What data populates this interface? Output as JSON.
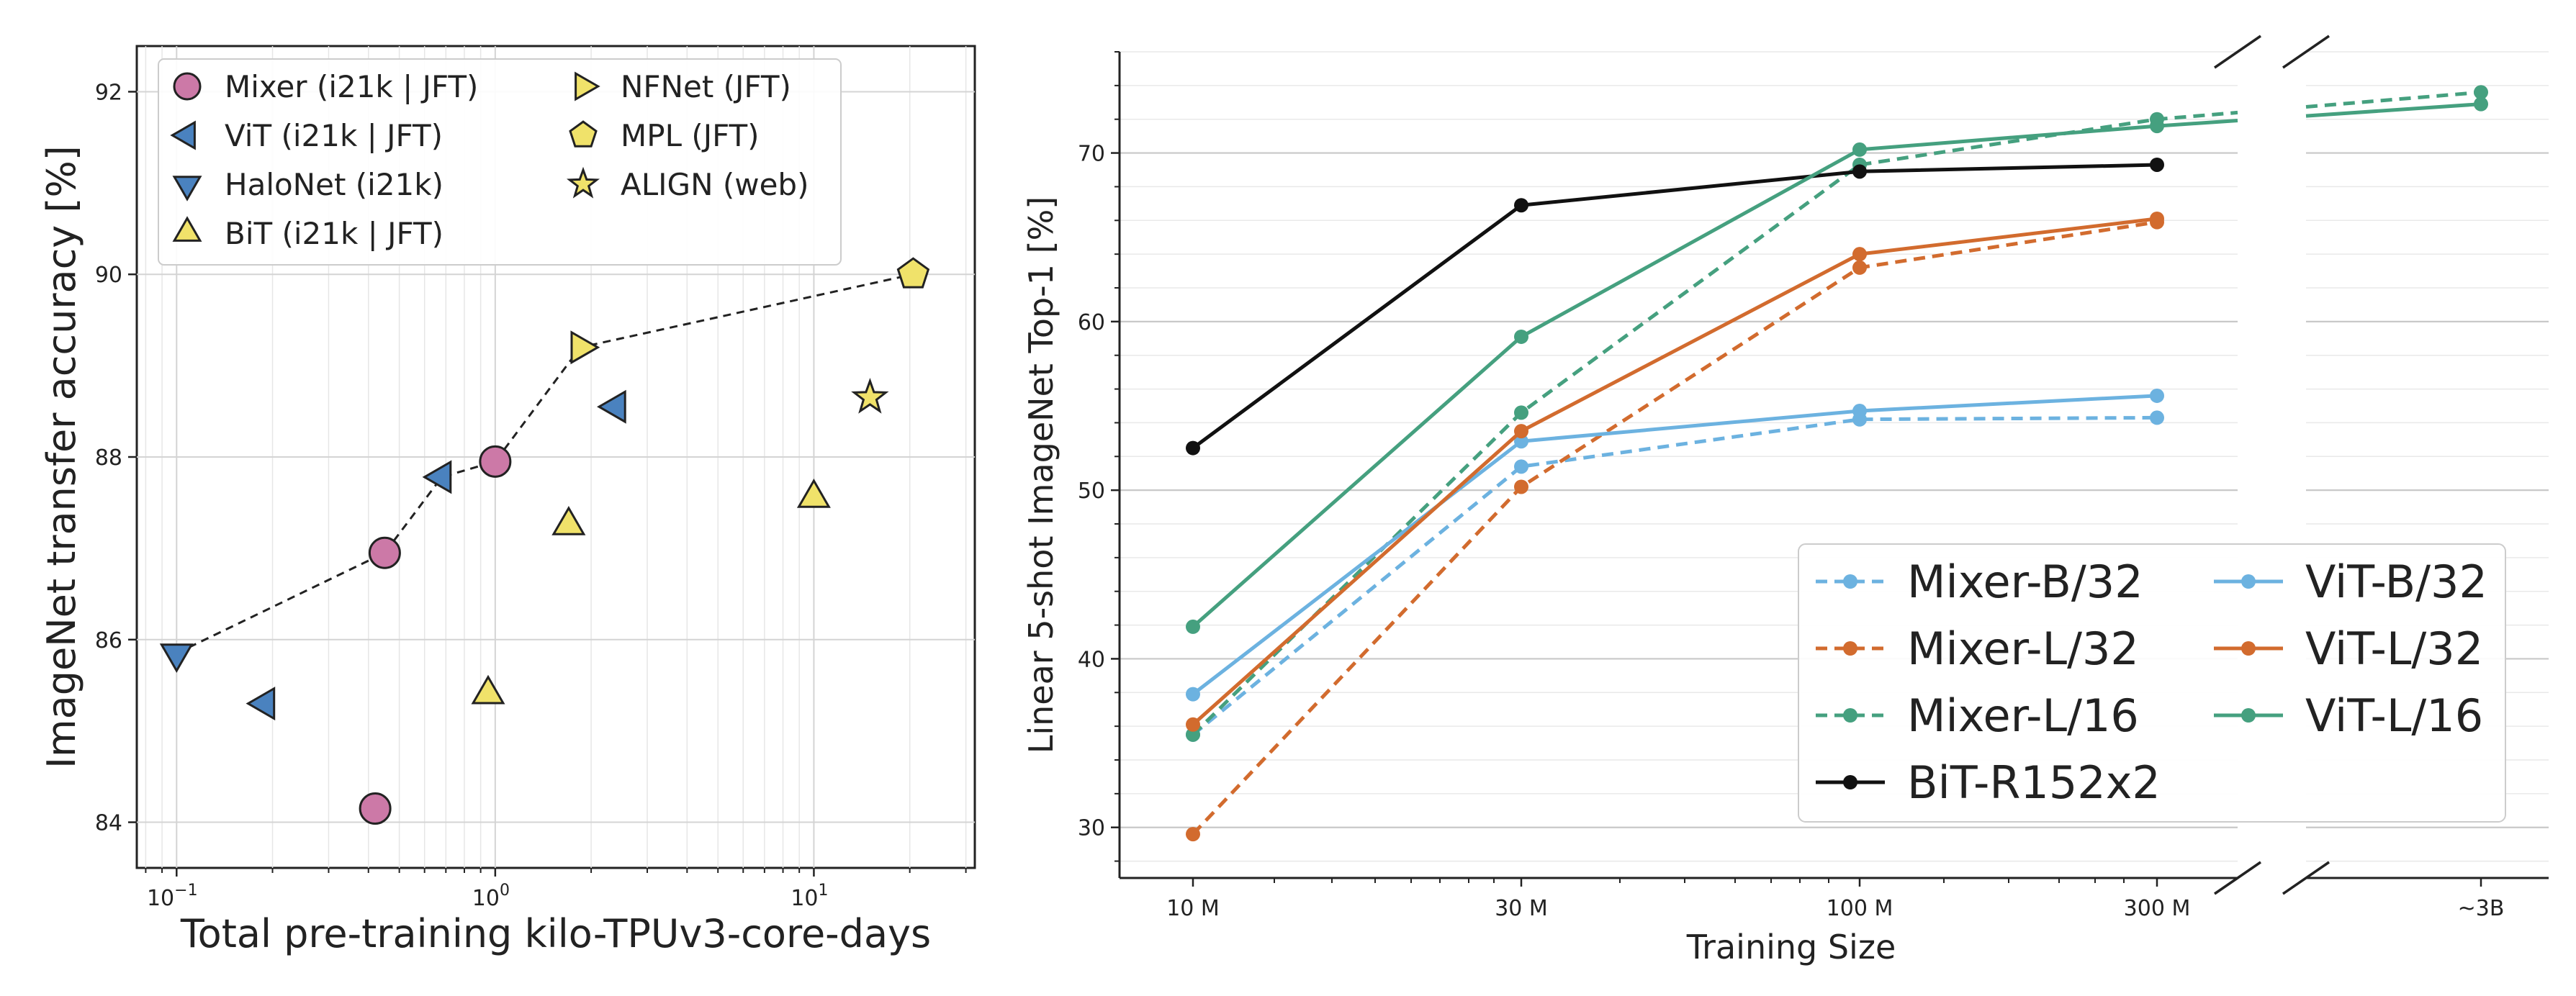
{
  "chart_data": [
    {
      "type": "scatter",
      "xlabel": "Total pre-training kilo-TPUv3-core-days",
      "ylabel": "ImageNet transfer accuracy [%]",
      "xscale": "log",
      "xlim": [
        0.075,
        32
      ],
      "ylim": [
        83.5,
        92.5
      ],
      "x_ticks": [
        {
          "value": 0.1,
          "base": "10",
          "exp": "−1"
        },
        {
          "value": 1,
          "base": "10",
          "exp": "0"
        },
        {
          "value": 10,
          "base": "10",
          "exp": "1"
        }
      ],
      "y_ticks": [
        84,
        86,
        88,
        90,
        92
      ],
      "grid": true,
      "legend_position": "top-left",
      "series": [
        {
          "name": "Mixer (i21k | JFT)",
          "marker": "circle",
          "color": "#cc79a7",
          "points": [
            [
              0.45,
              86.95
            ],
            [
              1.0,
              87.95
            ],
            [
              0.42,
              84.15
            ]
          ]
        },
        {
          "name": "ViT (i21k | JFT)",
          "marker": "triangle-left",
          "color": "#4a82bf",
          "points": [
            [
              0.68,
              87.78
            ],
            [
              2.4,
              88.55
            ],
            [
              0.19,
              85.3
            ]
          ]
        },
        {
          "name": "HaloNet (i21k)",
          "marker": "triangle-down",
          "color": "#4a82bf",
          "points": [
            [
              0.1,
              85.85
            ]
          ]
        },
        {
          "name": "BiT (i21k | JFT)",
          "marker": "triangle-up",
          "color": "#f0e26a",
          "points": [
            [
              1.7,
              87.25
            ],
            [
              0.95,
              85.4
            ],
            [
              10.0,
              87.55
            ]
          ]
        },
        {
          "name": "NFNet (JFT)",
          "marker": "triangle-right",
          "color": "#f0e26a",
          "points": [
            [
              1.85,
              89.2
            ]
          ]
        },
        {
          "name": "MPL (JFT)",
          "marker": "pentagon",
          "color": "#f0e26a",
          "points": [
            [
              20.5,
              90.0
            ]
          ]
        },
        {
          "name": "ALIGN (web)",
          "marker": "star",
          "color": "#f0e26a",
          "points": [
            [
              15.0,
              88.65
            ]
          ]
        }
      ],
      "frontier": [
        [
          0.1,
          85.85
        ],
        [
          0.45,
          86.95
        ],
        [
          0.68,
          87.78
        ],
        [
          1.0,
          87.95
        ],
        [
          1.85,
          89.2
        ],
        [
          20.5,
          90.0
        ]
      ]
    },
    {
      "type": "line",
      "xlabel": "Training Size",
      "ylabel": "Linear 5-shot ImageNet Top-1 [%]",
      "categories": [
        "10 M",
        "30 M",
        "100 M",
        "300 M",
        "~3B"
      ],
      "ylim": [
        27,
        76
      ],
      "y_ticks": [
        30,
        40,
        50,
        60,
        70
      ],
      "grid": true,
      "axis_break": "between 300 M and ~3B",
      "legend_position": "bottom-right",
      "series": [
        {
          "name": "Mixer-B/32",
          "style": "dashed",
          "color": "#6cb2e0",
          "values": [
            35.5,
            51.4,
            54.2,
            54.3,
            null
          ]
        },
        {
          "name": "Mixer-L/32",
          "style": "dashed",
          "color": "#d26b2e",
          "values": [
            29.6,
            50.2,
            63.2,
            65.9,
            null
          ]
        },
        {
          "name": "Mixer-L/16",
          "style": "dashed",
          "color": "#45a07f",
          "values": [
            35.5,
            54.6,
            69.3,
            72.0,
            73.6
          ]
        },
        {
          "name": "BiT-R152x2",
          "style": "solid",
          "color": "#111111",
          "values": [
            52.5,
            66.9,
            68.9,
            69.3,
            null
          ]
        },
        {
          "name": "ViT-B/32",
          "style": "solid",
          "color": "#6cb2e0",
          "values": [
            37.9,
            52.9,
            54.7,
            55.6,
            null
          ]
        },
        {
          "name": "ViT-L/32",
          "style": "solid",
          "color": "#d26b2e",
          "values": [
            36.1,
            53.5,
            64.0,
            66.1,
            null
          ]
        },
        {
          "name": "ViT-L/16",
          "style": "solid",
          "color": "#45a07f",
          "values": [
            41.9,
            59.1,
            70.2,
            71.6,
            72.9
          ]
        }
      ]
    }
  ]
}
